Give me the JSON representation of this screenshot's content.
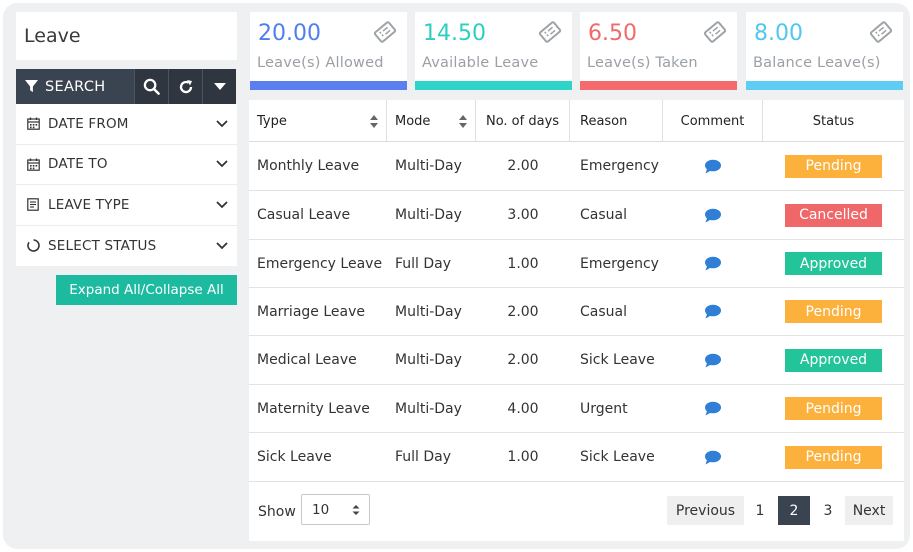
{
  "page": {
    "title": "Leave"
  },
  "search": {
    "label": "SEARCH"
  },
  "filters": [
    {
      "label": "DATE FROM",
      "icon": "calendar-icon"
    },
    {
      "label": "DATE TO",
      "icon": "calendar-icon"
    },
    {
      "label": "LEAVE TYPE",
      "icon": "document-icon"
    },
    {
      "label": "SELECT STATUS",
      "icon": "circle-icon"
    }
  ],
  "expand_label": "Expand All/Collapse All",
  "stats": [
    {
      "value": "20.00",
      "label": "Leave(s) Allowed",
      "color": "#4f7ef0",
      "strip": "#5b7ff0"
    },
    {
      "value": "14.50",
      "label": "Available Leave",
      "color": "#2ecfc1",
      "strip": "#2fd4c8"
    },
    {
      "value": "6.50",
      "label": "Leave(s) Taken",
      "color": "#f06a6a",
      "strip": "#f56a6a"
    },
    {
      "value": "8.00",
      "label": "Balance Leave(s)",
      "color": "#52c6ef",
      "strip": "#5ecdf4"
    }
  ],
  "table": {
    "headers": [
      "Type",
      "Mode",
      "No. of days",
      "Reason",
      "Comment",
      "Status"
    ],
    "rows": [
      {
        "type": "Monthly Leave",
        "mode": "Multi-Day",
        "days": "2.00",
        "reason": "Emergency",
        "status": "Pending"
      },
      {
        "type": "Casual Leave",
        "mode": "Multi-Day",
        "days": "3.00",
        "reason": "Casual",
        "status": "Cancelled"
      },
      {
        "type": "Emergency Leave",
        "mode": "Full Day",
        "days": "1.00",
        "reason": "Emergency",
        "status": "Approved"
      },
      {
        "type": "Marriage Leave",
        "mode": "Multi-Day",
        "days": "2.00",
        "reason": "Casual",
        "status": "Pending"
      },
      {
        "type": "Medical Leave",
        "mode": "Multi-Day",
        "days": "2.00",
        "reason": "Sick Leave",
        "status": "Approved"
      },
      {
        "type": "Maternity Leave",
        "mode": "Multi-Day",
        "days": "4.00",
        "reason": "Urgent",
        "status": "Pending"
      },
      {
        "type": "Sick Leave",
        "mode": "Full Day",
        "days": "1.00",
        "reason": "Sick Leave",
        "status": "Pending"
      }
    ]
  },
  "status_colors": {
    "Pending": "#fbb13c",
    "Cancelled": "#f0676a",
    "Approved": "#24c49a"
  },
  "comment_icon_color": "#2f7fd6",
  "footer": {
    "show_label": "Show",
    "page_size": "10",
    "previous_label": "Previous",
    "pages": [
      "1",
      "2",
      "3"
    ],
    "current_page": "2",
    "next_label": "Next"
  }
}
